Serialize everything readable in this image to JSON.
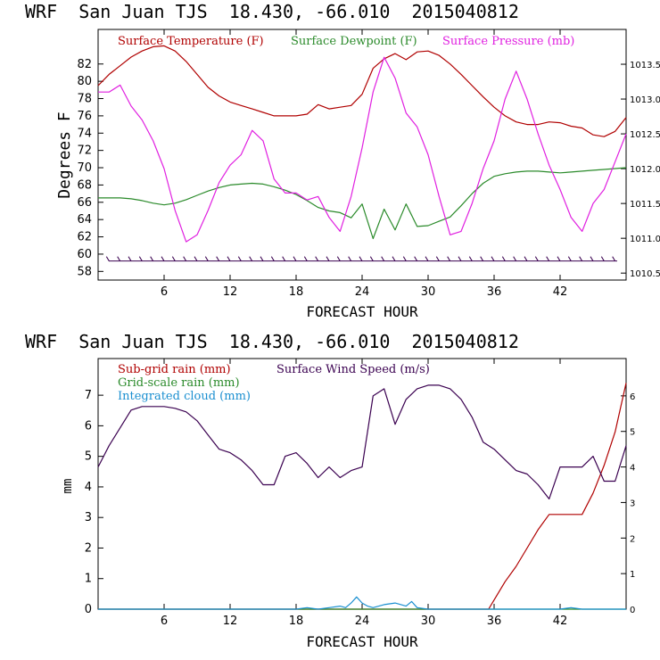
{
  "chart_data": [
    {
      "type": "line",
      "title": "WRF  San Juan TJS  18.430, -66.010  2015040812",
      "xlabel": "FORECAST HOUR",
      "ylabel": "Degrees F",
      "xlim": [
        0,
        48
      ],
      "xticks": [
        6,
        12,
        18,
        24,
        30,
        36,
        42
      ],
      "ylim": [
        57,
        86
      ],
      "yticks": [
        58,
        60,
        62,
        64,
        66,
        68,
        70,
        72,
        74,
        76,
        78,
        80,
        82
      ],
      "y2lim": [
        1010.4,
        1014.0
      ],
      "y2ticks": [
        "1010.5",
        "1011.0",
        "1011.5",
        "1012.0",
        "1012.5",
        "1013.0",
        "1013.5"
      ],
      "series": [
        {
          "name": "Surface Temperature (F)",
          "color": "#b00000",
          "axis": "left",
          "x": [
            0,
            1,
            2,
            3,
            4,
            5,
            6,
            7,
            8,
            9,
            10,
            11,
            12,
            13,
            14,
            15,
            16,
            17,
            18,
            19,
            20,
            21,
            22,
            23,
            24,
            25,
            26,
            27,
            28,
            29,
            30,
            31,
            32,
            33,
            34,
            35,
            36,
            37,
            38,
            39,
            40,
            41,
            42,
            43,
            44,
            45,
            46,
            47,
            48
          ],
          "values": [
            79.5,
            80.8,
            81.8,
            82.8,
            83.5,
            84,
            84.1,
            83.5,
            82.3,
            80.8,
            79.3,
            78.3,
            77.6,
            77.2,
            76.8,
            76.4,
            76,
            76,
            76,
            76.2,
            77.3,
            76.8,
            77,
            77.2,
            78.5,
            81.5,
            82.6,
            83.2,
            82.5,
            83.4,
            83.5,
            83,
            82,
            80.8,
            79.5,
            78.2,
            77,
            76,
            75.3,
            75,
            75,
            75.3,
            75.2,
            74.8,
            74.6,
            73.8,
            73.6,
            74.2,
            75.8
          ]
        },
        {
          "name": "Surface Dewpoint (F)",
          "color": "#2a8a2a",
          "axis": "left",
          "x": [
            0,
            1,
            2,
            3,
            4,
            5,
            6,
            7,
            8,
            9,
            10,
            11,
            12,
            13,
            14,
            15,
            16,
            17,
            18,
            19,
            20,
            21,
            22,
            23,
            24,
            25,
            26,
            27,
            28,
            29,
            30,
            31,
            32,
            33,
            34,
            35,
            36,
            37,
            38,
            39,
            40,
            41,
            42,
            43,
            44,
            45,
            46,
            47,
            48
          ],
          "values": [
            66.5,
            66.5,
            66.5,
            66.4,
            66.2,
            65.9,
            65.7,
            65.9,
            66.3,
            66.8,
            67.3,
            67.7,
            68,
            68.1,
            68.2,
            68.1,
            67.8,
            67.4,
            66.9,
            66.2,
            65.4,
            65,
            64.8,
            64.2,
            65.8,
            61.8,
            65.2,
            62.8,
            65.8,
            63.2,
            63.3,
            63.8,
            64.3,
            65.6,
            67,
            68.2,
            69,
            69.3,
            69.5,
            69.6,
            69.6,
            69.5,
            69.4,
            69.5,
            69.6,
            69.7,
            69.8,
            69.9,
            70
          ]
        },
        {
          "name": "Surface Pressure (mb)",
          "color": "#e020e0",
          "axis": "right",
          "x": [
            0,
            1,
            2,
            3,
            4,
            5,
            6,
            7,
            8,
            9,
            10,
            11,
            12,
            13,
            14,
            15,
            16,
            17,
            18,
            19,
            20,
            21,
            22,
            23,
            24,
            25,
            26,
            27,
            28,
            29,
            30,
            31,
            32,
            33,
            34,
            35,
            36,
            37,
            38,
            39,
            40,
            41,
            42,
            43,
            44,
            45,
            46,
            47,
            48
          ],
          "values": [
            1013.1,
            1013.1,
            1013.2,
            1012.9,
            1012.7,
            1012.4,
            1012.0,
            1011.4,
            1010.95,
            1011.05,
            1011.4,
            1011.8,
            1012.05,
            1012.2,
            1012.55,
            1012.4,
            1011.85,
            1011.65,
            1011.65,
            1011.55,
            1011.6,
            1011.3,
            1011.1,
            1011.6,
            1012.3,
            1013.1,
            1013.6,
            1013.3,
            1012.8,
            1012.6,
            1012.2,
            1011.6,
            1011.05,
            1011.1,
            1011.5,
            1012.0,
            1012.4,
            1013.0,
            1013.4,
            1013.0,
            1012.5,
            1012.05,
            1011.7,
            1011.3,
            1011.1,
            1011.5,
            1011.7,
            1012.1,
            1012.5
          ]
        }
      ],
      "legend_position": "top"
    },
    {
      "type": "line",
      "title": "WRF  San Juan TJS  18.430, -66.010  2015040812",
      "xlabel": "FORECAST HOUR",
      "ylabel": "mm",
      "xlim": [
        0,
        48
      ],
      "xticks": [
        6,
        12,
        18,
        24,
        30,
        36,
        42
      ],
      "ylim": [
        0,
        8.2
      ],
      "yticks": [
        0,
        1,
        2,
        3,
        4,
        5,
        6,
        7
      ],
      "y2lim": [
        0,
        7.05
      ],
      "y2ticks": [
        0,
        1,
        2,
        3,
        4,
        5,
        6
      ],
      "series": [
        {
          "name": "Sub-grid rain (mm)",
          "color": "#b00000",
          "axis": "left",
          "x": [
            0,
            35.5,
            36,
            37,
            38,
            39,
            40,
            41,
            42,
            43,
            44,
            45,
            46,
            47,
            48
          ],
          "values": [
            0,
            0,
            0.3,
            0.9,
            1.4,
            2.0,
            2.6,
            3.1,
            3.1,
            3.1,
            3.1,
            3.8,
            4.7,
            5.8,
            7.4
          ]
        },
        {
          "name": "Grid-scale rain (mm)",
          "color": "#2a8a2a",
          "axis": "left",
          "x": [
            0,
            48
          ],
          "values": [
            0,
            0
          ]
        },
        {
          "name": "Integrated cloud (mm)",
          "color": "#1a8fd0",
          "axis": "left",
          "x": [
            0,
            18,
            19,
            20,
            21,
            22,
            22.5,
            23,
            23.5,
            24,
            24.5,
            25,
            26,
            27,
            28,
            28.5,
            29,
            30,
            42,
            43,
            44,
            48
          ],
          "values": [
            0,
            0,
            0.05,
            0,
            0.05,
            0.1,
            0.05,
            0.2,
            0.4,
            0.2,
            0.1,
            0.05,
            0.15,
            0.2,
            0.1,
            0.25,
            0.05,
            0,
            0,
            0.05,
            0,
            0
          ]
        },
        {
          "name": "Surface Wind Speed (m/s)",
          "color": "#3a0050",
          "axis": "right",
          "x": [
            0,
            1,
            2,
            3,
            4,
            5,
            6,
            7,
            8,
            9,
            10,
            11,
            12,
            13,
            14,
            15,
            16,
            17,
            18,
            19,
            20,
            21,
            22,
            23,
            24,
            25,
            26,
            27,
            28,
            29,
            30,
            31,
            32,
            33,
            34,
            35,
            36,
            37,
            38,
            39,
            40,
            41,
            42,
            43,
            44,
            45,
            46,
            47,
            48
          ],
          "values": [
            4,
            4.6,
            5.1,
            5.6,
            5.7,
            5.7,
            5.7,
            5.65,
            5.55,
            5.3,
            4.9,
            4.5,
            4.4,
            4.2,
            3.9,
            3.5,
            3.5,
            4.3,
            4.4,
            4.1,
            3.7,
            4.0,
            3.7,
            3.9,
            4.0,
            6.0,
            6.2,
            5.2,
            5.9,
            6.2,
            6.3,
            6.3,
            6.2,
            5.9,
            5.4,
            4.7,
            4.5,
            4.2,
            3.9,
            3.8,
            3.5,
            3.1,
            4.0,
            4.0,
            4.0,
            4.3,
            3.6,
            3.6,
            4.6
          ]
        }
      ],
      "legend_position": "top-left"
    }
  ]
}
